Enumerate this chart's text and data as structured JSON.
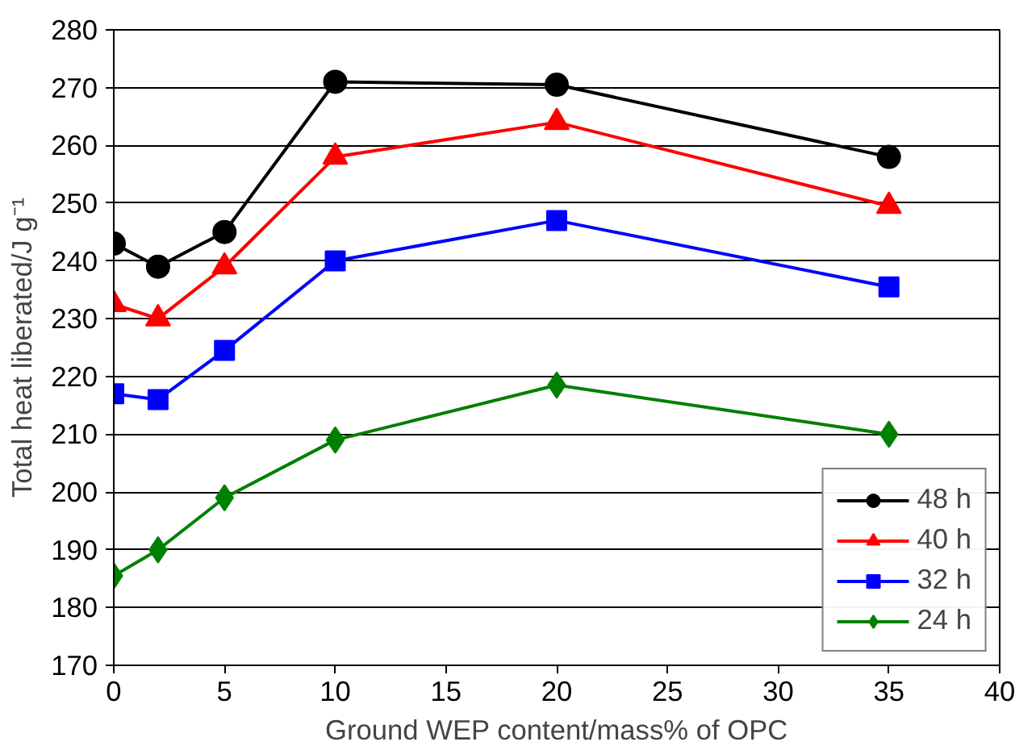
{
  "chart_data": {
    "type": "line",
    "xlabel": "Ground WEP content/mass% of OPC",
    "ylabel": "Total heat liberated/J g⁻¹",
    "x": [
      0,
      2,
      5,
      10,
      20,
      35
    ],
    "series": [
      {
        "name": "48 h",
        "color": "#000000",
        "marker": "circle",
        "values": [
          243,
          239,
          245,
          271,
          270.5,
          258
        ]
      },
      {
        "name": "40 h",
        "color": "#ff0000",
        "marker": "triangle",
        "values": [
          232.5,
          230,
          239,
          258,
          264,
          249.5
        ]
      },
      {
        "name": "32 h",
        "color": "#0000ff",
        "marker": "square",
        "values": [
          217,
          216,
          224.5,
          240,
          247,
          235.5
        ]
      },
      {
        "name": "24 h",
        "color": "#008000",
        "marker": "diamond",
        "values": [
          185.5,
          190,
          199,
          209,
          218.5,
          210
        ]
      }
    ],
    "xlim": [
      0,
      40
    ],
    "xticks": [
      0,
      5,
      10,
      15,
      20,
      25,
      30,
      35,
      40
    ],
    "ylim": [
      170,
      280
    ],
    "yticks": [
      170,
      180,
      190,
      200,
      210,
      220,
      230,
      240,
      250,
      260,
      270,
      280
    ],
    "grid": "y",
    "legend": "bottom right",
    "line_style": "solid"
  }
}
